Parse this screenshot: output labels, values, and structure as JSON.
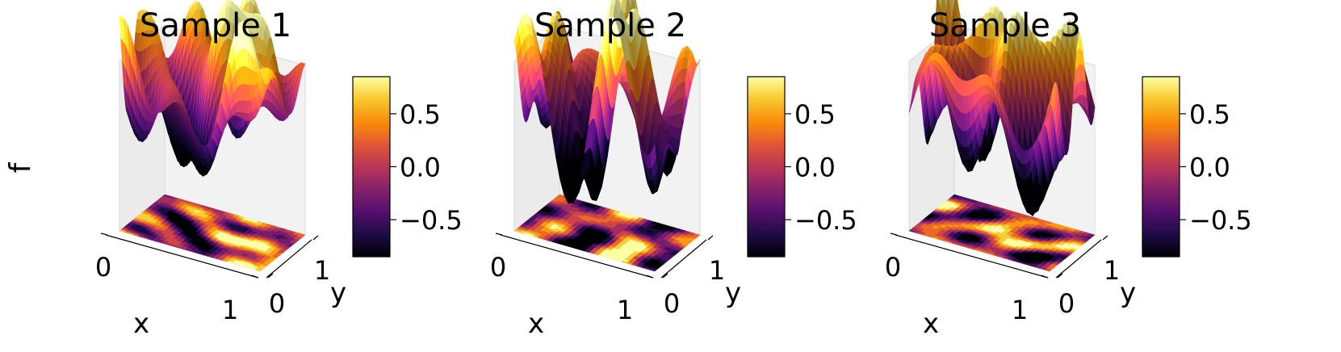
{
  "figure": {
    "shared_zlabel": "f"
  },
  "chart_data": [
    {
      "type": "surface3d",
      "title": "Sample 1",
      "xlabel": "x",
      "ylabel": "y",
      "x_ticks": [
        "0",
        "1"
      ],
      "y_ticks": [
        "0",
        "1"
      ],
      "colorbar": {
        "ticks": [
          0.5,
          0.0,
          -0.5
        ],
        "tick_labels": [
          "0.5",
          "0.0",
          "−0.5"
        ],
        "vmin": -0.85,
        "vmax": 0.85
      },
      "colormap": "inferno",
      "projection": "filled-contour",
      "seed": 1
    },
    {
      "type": "surface3d",
      "title": "Sample 2",
      "xlabel": "x",
      "ylabel": "y",
      "x_ticks": [
        "0",
        "1"
      ],
      "y_ticks": [
        "0",
        "1"
      ],
      "colorbar": {
        "ticks": [
          0.5,
          0.0,
          -0.5
        ],
        "tick_labels": [
          "0.5",
          "0.0",
          "−0.5"
        ],
        "vmin": -0.85,
        "vmax": 0.85
      },
      "colormap": "inferno",
      "projection": "filled-contour",
      "seed": 2
    },
    {
      "type": "surface3d",
      "title": "Sample 3",
      "xlabel": "x",
      "ylabel": "y",
      "x_ticks": [
        "0",
        "1"
      ],
      "y_ticks": [
        "0",
        "1"
      ],
      "colorbar": {
        "ticks": [
          0.5,
          0.0,
          -0.5
        ],
        "tick_labels": [
          "0.5",
          "0.0",
          "−0.5"
        ],
        "vmin": -0.85,
        "vmax": 0.85
      },
      "colormap": "inferno",
      "projection": "filled-contour",
      "seed": 3
    }
  ]
}
